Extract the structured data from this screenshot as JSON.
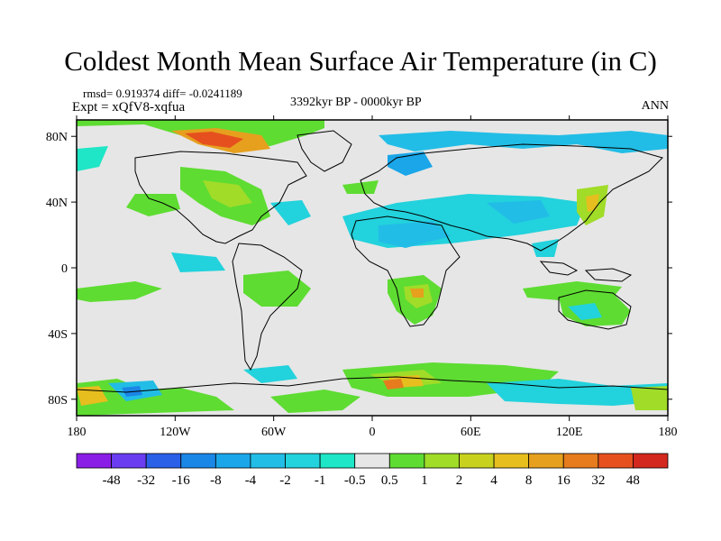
{
  "title": "Coldest Month Mean Surface Air Temperature (in C)",
  "stats": "rmsd= 0.919374 diff= -0.0241189",
  "experiment": "Expt = xQfV8-xqfua",
  "period": "3392kyr BP - 0000kyr BP",
  "season": "ANN",
  "map": {
    "lon_ticks": [
      "180",
      "120W",
      "60W",
      "0",
      "60E",
      "120E",
      "180"
    ],
    "lat_ticks": [
      "80N",
      "40N",
      "0",
      "40S",
      "80S"
    ],
    "land_mask_colors": {
      "ocean_neutral": "#e6e6e6",
      "coast": "#000000"
    }
  },
  "colorbar": {
    "labels": [
      "-48",
      "-32",
      "-16",
      "-8",
      "-4",
      "-2",
      "-1",
      "-0.5",
      "0.5",
      "1",
      "2",
      "4",
      "8",
      "16",
      "32",
      "48"
    ],
    "colors": [
      "#8a1ee6",
      "#6a3df0",
      "#2a5fe8",
      "#1a86e6",
      "#1aa6e8",
      "#22bde6",
      "#22d2dc",
      "#1ee6c6",
      "#e6e6e6",
      "#5edc32",
      "#a0dc28",
      "#c8d21e",
      "#e6be1e",
      "#e6a01e",
      "#e67c1e",
      "#e6501e",
      "#d2281e"
    ]
  }
}
